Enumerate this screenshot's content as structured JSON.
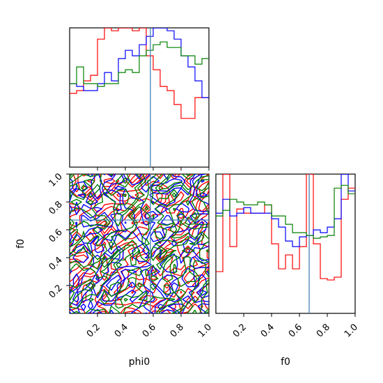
{
  "chart_data": {
    "type": "corner",
    "parameters": [
      "phi0",
      "f0"
    ],
    "truth": {
      "phi0": 0.58,
      "f0": 0.67
    },
    "series_colors": [
      "#ff0000",
      "#0000ff",
      "#008000"
    ],
    "truth_color": "#4682b4",
    "panels": [
      {
        "id": "hist-phi0",
        "type": "histogram-step",
        "xlim": [
          0,
          1
        ],
        "bin_edges": [
          0,
          0.05,
          0.1,
          0.15,
          0.2,
          0.25,
          0.3,
          0.35,
          0.4,
          0.45,
          0.5,
          0.55,
          0.6,
          0.65,
          0.7,
          0.75,
          0.8,
          0.85,
          0.9,
          0.95,
          1.0
        ],
        "series": [
          {
            "color": "#ff0000",
            "values": [
              0.53,
              0.55,
              0.62,
              0.66,
              0.92,
              1.0,
              0.98,
              1.0,
              1.0,
              0.98,
              1.0,
              0.8,
              0.7,
              0.58,
              0.55,
              0.45,
              0.35,
              0.35,
              0.5,
              0.5
            ]
          },
          {
            "color": "#0000ff",
            "values": [
              0.6,
              0.58,
              0.55,
              0.55,
              0.6,
              0.68,
              0.62,
              0.78,
              0.84,
              0.8,
              0.88,
              0.94,
              1.0,
              1.0,
              0.98,
              0.92,
              0.8,
              0.72,
              0.62,
              0.5
            ]
          },
          {
            "color": "#008000",
            "values": [
              0.6,
              0.72,
              0.6,
              0.6,
              0.58,
              0.6,
              0.6,
              0.68,
              0.7,
              0.68,
              0.8,
              0.84,
              0.88,
              0.9,
              0.86,
              0.86,
              0.8,
              0.8,
              0.74,
              0.78
            ]
          }
        ]
      },
      {
        "id": "hist-f0",
        "type": "histogram-step",
        "xlim": [
          0,
          1
        ],
        "xlabel": "f0",
        "xticks": [
          "0.2",
          "0.4",
          "0.6",
          "0.8",
          "1.0"
        ],
        "bin_edges": [
          0,
          0.05,
          0.1,
          0.15,
          0.2,
          0.25,
          0.3,
          0.35,
          0.4,
          0.45,
          0.5,
          0.55,
          0.6,
          0.65,
          0.7,
          0.75,
          0.8,
          0.85,
          0.9,
          0.95,
          1.0
        ],
        "series": [
          {
            "color": "#ff0000",
            "values": [
              0.3,
              1.0,
              0.48,
              0.75,
              0.72,
              0.72,
              0.72,
              0.78,
              0.5,
              0.32,
              0.42,
              0.32,
              0.48,
              1.0,
              0.5,
              0.25,
              0.24,
              0.26,
              0.82,
              0.9
            ]
          },
          {
            "color": "#0000ff",
            "values": [
              0.72,
              0.82,
              0.7,
              0.72,
              0.76,
              0.72,
              0.72,
              0.72,
              0.68,
              0.62,
              0.52,
              0.48,
              0.55,
              0.56,
              0.6,
              0.58,
              0.62,
              0.68,
              1.0,
              0.88
            ]
          },
          {
            "color": "#008000",
            "values": [
              0.7,
              0.74,
              0.82,
              0.8,
              0.78,
              0.78,
              0.8,
              0.78,
              0.7,
              0.7,
              0.64,
              0.58,
              0.58,
              0.56,
              0.54,
              0.55,
              0.56,
              0.9,
              0.92,
              0.86
            ]
          }
        ]
      },
      {
        "id": "contour-phi0-f0",
        "type": "contour",
        "xlim": [
          0,
          1
        ],
        "ylim": [
          0,
          1
        ],
        "xlabel": "phi0",
        "ylabel": "f0",
        "xticks": [
          "0.2",
          "0.4",
          "0.6",
          "0.8",
          "1.0"
        ],
        "yticks": [
          "0.2",
          "0.4",
          "0.6",
          "0.8",
          "1.0"
        ],
        "grid": false
      }
    ]
  }
}
